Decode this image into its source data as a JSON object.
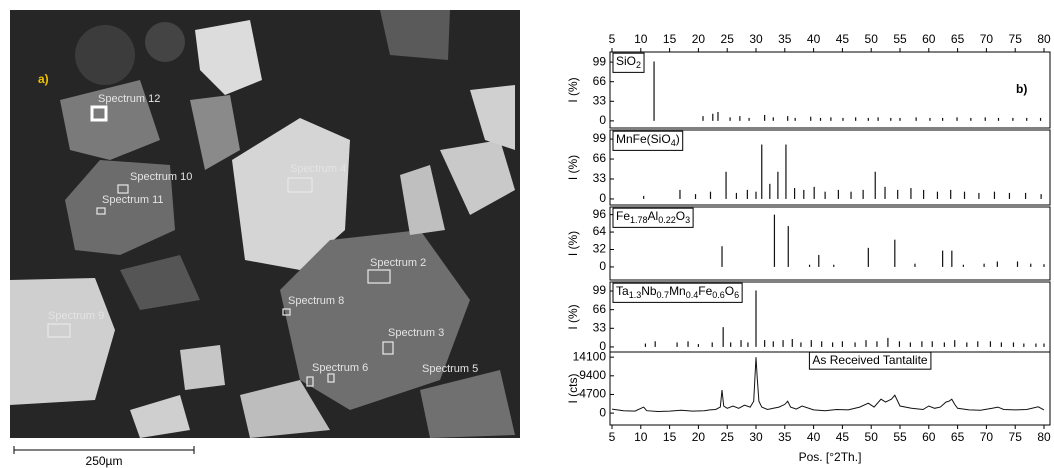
{
  "image": {
    "panel_label": "a)",
    "spectra": [
      "Spectrum 12",
      "Spectrum 10",
      "Spectrum 11",
      "Spectrum 4",
      "Spectrum 2",
      "Spectrum 8",
      "Spectrum 9",
      "Spectrum 3",
      "Spectrum 6",
      "Spectrum 5"
    ],
    "scale_bar": "250µm"
  },
  "right_panel_label": "b)",
  "chart_data": [
    {
      "type": "stick",
      "label": [
        {
          "t": "SiO"
        },
        {
          "sub": "2"
        }
      ],
      "ylabel": "I (%)",
      "color": "#111",
      "x": [
        12.3,
        20.8,
        22.5,
        23.4,
        25.5,
        27.2,
        28.8,
        31.5,
        33.0,
        35.5,
        36.8,
        39.5,
        41.2,
        43.0,
        45.1,
        47.3,
        49.5,
        51.2,
        53.4,
        55.0,
        57.8,
        60.2,
        62.4,
        64.9,
        67.3,
        69.8,
        72.1,
        74.6,
        77.0,
        79.4
      ],
      "values": [
        100,
        8,
        12,
        15,
        6,
        8,
        5,
        10,
        6,
        8,
        5,
        7,
        5,
        6,
        5,
        6,
        5,
        6,
        5,
        5,
        6,
        5,
        5,
        6,
        5,
        6,
        5,
        5,
        5,
        5
      ],
      "ylim": [
        -12,
        116
      ],
      "yticks": [
        0,
        33,
        66,
        99
      ]
    },
    {
      "type": "stick",
      "label": [
        {
          "t": "MnFe(SiO"
        },
        {
          "sub": "4"
        },
        {
          "t": ")"
        }
      ],
      "ylabel": "I (%)",
      "color": "#111",
      "x": [
        10.5,
        16.8,
        19.5,
        22.1,
        24.8,
        26.6,
        28.5,
        30.0,
        31.0,
        32.4,
        33.8,
        35.2,
        36.7,
        38.3,
        40.1,
        42.0,
        44.3,
        46.5,
        48.6,
        50.7,
        52.4,
        54.6,
        56.9,
        59.1,
        61.5,
        63.8,
        66.2,
        68.7,
        71.4,
        74.0,
        76.8,
        79.5
      ],
      "values": [
        5,
        15,
        8,
        12,
        45,
        10,
        15,
        12,
        90,
        25,
        45,
        90,
        18,
        15,
        20,
        12,
        15,
        12,
        15,
        45,
        20,
        15,
        18,
        15,
        12,
        15,
        12,
        10,
        12,
        10,
        10,
        8
      ],
      "ylim": [
        -10,
        114
      ],
      "yticks": [
        0,
        33,
        66,
        99
      ]
    },
    {
      "type": "stick",
      "label": [
        {
          "t": "Fe"
        },
        {
          "sub": "1.78"
        },
        {
          "t": "Al"
        },
        {
          "sub": "0.22"
        },
        {
          "t": "O"
        },
        {
          "sub": "3"
        }
      ],
      "ylabel": "I (%)",
      "color": "#111",
      "x": [
        24.1,
        33.2,
        35.6,
        39.3,
        40.9,
        43.5,
        49.5,
        54.1,
        57.6,
        62.4,
        64.0,
        66.0,
        69.6,
        71.9,
        75.4,
        77.7,
        80.0
      ],
      "values": [
        38,
        96,
        75,
        4,
        22,
        4,
        35,
        50,
        6,
        30,
        30,
        4,
        6,
        10,
        10,
        6,
        5
      ],
      "ylim": [
        -24,
        110
      ],
      "yticks": [
        0,
        32,
        64,
        96
      ]
    },
    {
      "type": "stick",
      "label": [
        {
          "t": "Ta"
        },
        {
          "sub": "1.3"
        },
        {
          "t": "Nb"
        },
        {
          "sub": "0.7"
        },
        {
          "t": "Mn"
        },
        {
          "sub": "0.4"
        },
        {
          "t": "Fe"
        },
        {
          "sub": "0.6"
        },
        {
          "t": "O"
        },
        {
          "sub": "6"
        }
      ],
      "ylabel": "I (%)",
      "color": "#111",
      "x": [
        10.8,
        12.5,
        16.3,
        18.2,
        20.0,
        22.4,
        24.3,
        25.6,
        27.4,
        28.6,
        30.0,
        31.5,
        33.0,
        34.7,
        36.3,
        37.8,
        39.6,
        41.4,
        43.3,
        45.0,
        47.2,
        49.1,
        51.0,
        52.9,
        54.9,
        56.8,
        58.8,
        60.6,
        62.7,
        64.5,
        66.6,
        68.5,
        70.7,
        72.6,
        74.7,
        76.5,
        78.6,
        80.0
      ],
      "values": [
        6,
        10,
        8,
        10,
        5,
        8,
        35,
        8,
        12,
        8,
        100,
        12,
        10,
        12,
        14,
        8,
        12,
        10,
        8,
        10,
        8,
        12,
        10,
        16,
        10,
        8,
        10,
        10,
        8,
        12,
        8,
        10,
        10,
        8,
        8,
        6,
        6,
        6
      ],
      "ylim": [
        -9,
        115
      ],
      "yticks": [
        0,
        33,
        66,
        99
      ]
    },
    {
      "type": "line",
      "label": [
        {
          "t": "As Received Tantalite"
        }
      ],
      "ylabel": "I (cts)",
      "color": "#111",
      "x": [
        5,
        7,
        9,
        10.5,
        11,
        13,
        15,
        17,
        19,
        21,
        22,
        23,
        23.8,
        24.1,
        24.4,
        25,
        26,
        27,
        28,
        29,
        29.6,
        30.0,
        30.2,
        30.5,
        31,
        32,
        33,
        34,
        35,
        35.5,
        36,
        37,
        38,
        40,
        42,
        44,
        46,
        48,
        49.5,
        50.5,
        51.7,
        52.5,
        53.5,
        54.1,
        55,
        57,
        59,
        60,
        61,
        62,
        63,
        63.5,
        64,
        64.5,
        65,
        67,
        69,
        71,
        72,
        73,
        75,
        77,
        79,
        80
      ],
      "values": [
        1000,
        600,
        500,
        1500,
        600,
        400,
        500,
        700,
        500,
        600,
        800,
        900,
        1500,
        5800,
        1800,
        1200,
        1800,
        1200,
        2000,
        1500,
        3000,
        14100,
        9000,
        3000,
        1500,
        900,
        1200,
        1500,
        2200,
        3000,
        1500,
        1000,
        1800,
        800,
        600,
        900,
        800,
        1500,
        2500,
        1500,
        3500,
        2800,
        3500,
        4500,
        1800,
        1200,
        900,
        1800,
        1200,
        1500,
        2800,
        3000,
        3500,
        2200,
        1200,
        800,
        700,
        1200,
        1500,
        900,
        800,
        900,
        1600,
        800
      ],
      "ylim": [
        -3000,
        15400
      ],
      "yticks": [
        0,
        4700,
        9400,
        14100
      ],
      "xlim": [
        5,
        80
      ],
      "xticks": [
        5,
        10,
        15,
        20,
        25,
        30,
        35,
        40,
        45,
        50,
        55,
        60,
        65,
        70,
        75,
        80
      ],
      "xlabel": "Pos. [°2Th.]"
    }
  ]
}
